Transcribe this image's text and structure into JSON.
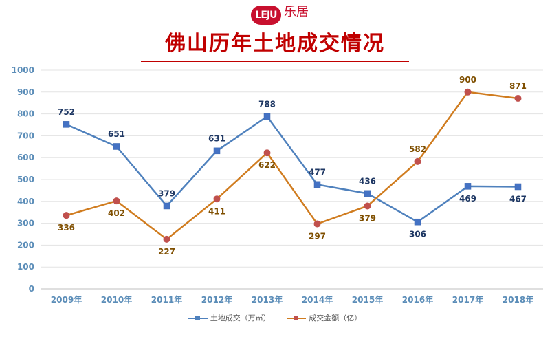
{
  "logo": {
    "badge": "LEJU",
    "text": "乐居"
  },
  "chart_data": {
    "type": "line",
    "title": "佛山历年土地成交情况",
    "categories": [
      "2009年",
      "2010年",
      "2011年",
      "2012年",
      "2013年",
      "2014年",
      "2015年",
      "2016年",
      "2017年",
      "2018年"
    ],
    "series": [
      {
        "name": "土地成交（万㎡）",
        "values": [
          752,
          651,
          379,
          631,
          788,
          477,
          436,
          306,
          469,
          467
        ],
        "color": "#4f81bd",
        "marker": "square",
        "label_color": "#1f3864"
      },
      {
        "name": "成交金额（亿）",
        "values": [
          336,
          402,
          227,
          411,
          622,
          297,
          379,
          582,
          900,
          871
        ],
        "color": "#d07c1f",
        "marker": "circle",
        "label_color": "#7f4f00"
      }
    ],
    "ylim": [
      0,
      1000
    ],
    "yticks": [
      0,
      100,
      200,
      300,
      400,
      500,
      600,
      700,
      800,
      900,
      1000
    ],
    "grid": true,
    "legend": "bottom",
    "axis_label_color": "#5b8db8"
  }
}
